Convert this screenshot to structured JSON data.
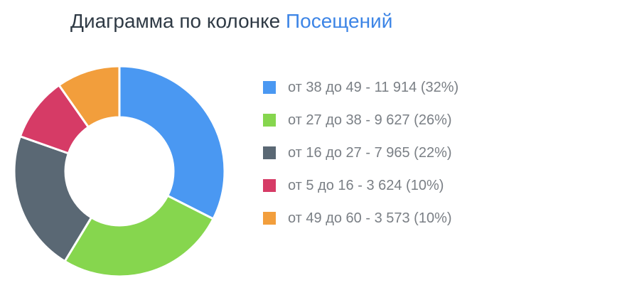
{
  "header": {
    "title_prefix": "Диаграмма по колонке",
    "title_column": "Посещений"
  },
  "chart_data": {
    "type": "pie",
    "variant": "donut",
    "title": "Диаграмма по колонке Посещений",
    "legend_position": "right",
    "categories": [
      "от 38 до 49",
      "от 27 до 38",
      "от 16 до 27",
      "от 5 до 16",
      "от 49 до 60"
    ],
    "values": [
      11914,
      9627,
      7965,
      3624,
      3573
    ],
    "percents": [
      32,
      26,
      22,
      10,
      10
    ],
    "colors": [
      "#4a98f2",
      "#86d64e",
      "#5a6874",
      "#d63b66",
      "#f29e3c"
    ],
    "legend_labels": [
      "от 38 до 49 - 11 914 (32%)",
      "от 27 до 38 - 9 627 (26%)",
      "от 16 до 27 - 7 965 (22%)",
      "от 5 до 16 - 3 624 (10%)",
      "от 49 до 60 - 3 573 (10%)"
    ]
  }
}
